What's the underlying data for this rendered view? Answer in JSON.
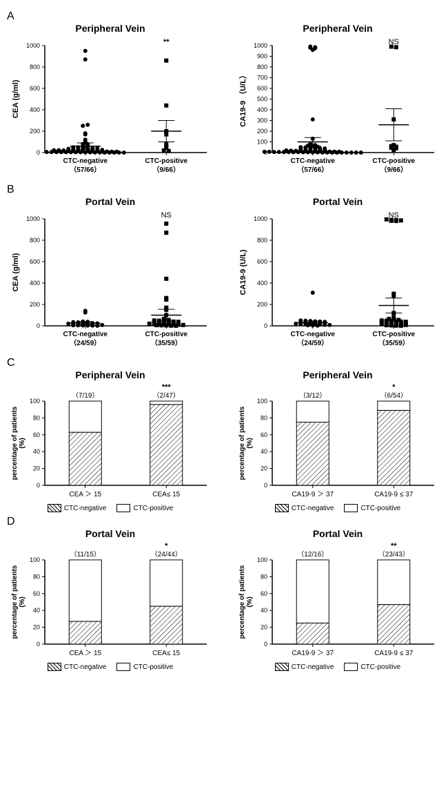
{
  "styling": {
    "colors": {
      "background": "#ffffff",
      "axis": "#000000",
      "marker": "#000000",
      "hatch_fg": "#000000",
      "hatch_bg": "#ffffff"
    },
    "fonts": {
      "panel_label_pt": 16,
      "title_pt": 14,
      "axis_label_pt": 11,
      "tick_pt": 10
    }
  },
  "scatter_common": {
    "ylim": [
      0,
      1000
    ],
    "ytick_step": 200,
    "marker_size": 5
  },
  "panel_A": {
    "label": "A",
    "left": {
      "title": "Peripheral Vein",
      "ylabel": "CEA (g/ml)",
      "ytick_step": 200,
      "ylim": [
        0,
        1000
      ],
      "groups": [
        {
          "label_top": "CTC-negative",
          "label_bottom": "（57/66）",
          "marker": "circle",
          "sig": "",
          "mean": 60,
          "err": 30,
          "points": [
            950,
            870,
            250,
            260,
            180,
            170,
            120,
            100,
            80,
            80,
            60,
            60,
            50,
            50,
            45,
            45,
            40,
            40,
            35,
            35,
            30,
            30,
            28,
            28,
            25,
            25,
            22,
            22,
            20,
            20,
            18,
            18,
            15,
            15,
            12,
            12,
            10,
            10,
            8,
            8,
            6,
            6,
            5,
            5,
            4,
            4,
            3,
            3,
            2,
            2,
            1,
            1,
            0,
            0,
            0,
            0,
            0
          ]
        },
        {
          "label_top": "CTC-positive",
          "label_bottom": "（9/66）",
          "marker": "square",
          "sig": "**",
          "mean": 200,
          "err": 100,
          "points": [
            860,
            440,
            200,
            170,
            80,
            55,
            45,
            20,
            15
          ]
        }
      ]
    },
    "right": {
      "title": "Peripheral Vein",
      "ylabel": "CA19-9 （U/L）",
      "ytick_step": 100,
      "ylim": [
        0,
        1000
      ],
      "groups": [
        {
          "label_top": "CTC-negative",
          "label_bottom": "（57/66）",
          "marker": "circle",
          "sig": "",
          "mean": 100,
          "err": 40,
          "points": [
            990,
            985,
            980,
            975,
            960,
            310,
            130,
            80,
            70,
            65,
            60,
            55,
            50,
            48,
            45,
            42,
            40,
            38,
            35,
            33,
            30,
            28,
            25,
            23,
            20,
            18,
            16,
            15,
            14,
            13,
            12,
            11,
            10,
            9,
            8,
            8,
            7,
            7,
            6,
            6,
            5,
            5,
            4,
            4,
            3,
            3,
            2,
            2,
            1,
            1,
            0,
            0,
            0,
            0,
            0,
            0,
            0
          ]
        },
        {
          "label_top": "CTC-positive",
          "label_bottom": "（9/66）",
          "marker": "square",
          "sig": "NS",
          "mean": 260,
          "err": 150,
          "points": [
            990,
            985,
            310,
            70,
            60,
            55,
            45,
            40,
            25
          ]
        }
      ]
    }
  },
  "panel_B": {
    "label": "B",
    "left": {
      "title": "Portal Vein",
      "ylabel": "CEA (g/ml)",
      "ytick_step": 200,
      "ylim": [
        0,
        1000
      ],
      "groups": [
        {
          "label_top": "CTC-negative",
          "label_bottom": "（24/59）",
          "marker": "circle",
          "sig": "",
          "mean": 25,
          "err": 15,
          "points": [
            140,
            125,
            40,
            38,
            35,
            33,
            30,
            28,
            25,
            23,
            20,
            18,
            16,
            15,
            14,
            12,
            10,
            8,
            6,
            5,
            4,
            3,
            2,
            1
          ]
        },
        {
          "label_top": "CTC-positive",
          "label_bottom": "（35/59）",
          "marker": "square",
          "sig": "NS",
          "mean": 100,
          "err": 55,
          "points": [
            955,
            870,
            440,
            260,
            245,
            170,
            150,
            100,
            65,
            55,
            50,
            48,
            45,
            42,
            40,
            38,
            35,
            33,
            30,
            28,
            25,
            23,
            20,
            18,
            16,
            15,
            14,
            12,
            10,
            8,
            6,
            5,
            4,
            2,
            1
          ]
        }
      ]
    },
    "right": {
      "title": "Portal Vein",
      "ylabel": "CA19-9 (U/L)",
      "ytick_step": 200,
      "ylim": [
        0,
        1000
      ],
      "groups": [
        {
          "label_top": "CTC-negative",
          "label_bottom": "（24/59）",
          "marker": "circle",
          "sig": "",
          "mean": 30,
          "err": 15,
          "points": [
            310,
            50,
            48,
            45,
            42,
            40,
            38,
            35,
            33,
            30,
            28,
            25,
            23,
            20,
            18,
            16,
            15,
            14,
            12,
            10,
            8,
            6,
            4,
            2
          ]
        },
        {
          "label_top": "CTC-positive",
          "label_bottom": "（35/59）",
          "marker": "square",
          "sig": "NS",
          "mean": 190,
          "err": 70,
          "points": [
            995,
            990,
            988,
            985,
            982,
            980,
            300,
            280,
            120,
            80,
            65,
            60,
            55,
            50,
            48,
            45,
            42,
            40,
            38,
            35,
            33,
            30,
            28,
            25,
            23,
            20,
            18,
            15,
            12,
            10,
            8,
            6,
            4,
            2,
            1
          ]
        }
      ]
    }
  },
  "bar_common": {
    "ylim": [
      0,
      100
    ],
    "ytick_step": 20,
    "bar_width": 0.4
  },
  "panel_C": {
    "label": "C",
    "left": {
      "title": "Peripheral Vein",
      "ylabel": "percentage of patients\n(%)",
      "bars": [
        {
          "xlabel": "CEA ＞ 15",
          "top_label": "（7/19）",
          "sig": "",
          "neg_pct": 63,
          "pos_pct": 37
        },
        {
          "xlabel": "CEA≤ 15",
          "top_label": "（2/47）",
          "sig": "***",
          "neg_pct": 96,
          "pos_pct": 4
        }
      ]
    },
    "right": {
      "title": "Peripheral Vein",
      "ylabel": "percentage of patients\n(%)",
      "bars": [
        {
          "xlabel": "CA19-9 ＞ 37",
          "top_label": "（3/12）",
          "sig": "",
          "neg_pct": 75,
          "pos_pct": 25
        },
        {
          "xlabel": "CA19-9 ≤ 37",
          "top_label": "（6/54）",
          "sig": "*",
          "neg_pct": 89,
          "pos_pct": 11
        }
      ]
    },
    "legend": {
      "neg": "CTC-negative",
      "pos": "CTC-positive"
    }
  },
  "panel_D": {
    "label": "D",
    "left": {
      "title": "Portal Vein",
      "ylabel": "percentage of patients\n(%)",
      "bars": [
        {
          "xlabel": "CEA ＞ 15",
          "top_label": "（11/15）",
          "sig": "",
          "neg_pct": 27,
          "pos_pct": 73
        },
        {
          "xlabel": "CEA≤ 15",
          "top_label": "（24/44）",
          "sig": "*",
          "neg_pct": 45,
          "pos_pct": 55
        }
      ]
    },
    "right": {
      "title": "Portal Vein",
      "ylabel": "percentage of patients\n(%)",
      "bars": [
        {
          "xlabel": "CA19-9 ＞ 37",
          "top_label": "（12/16）",
          "sig": "",
          "neg_pct": 25,
          "pos_pct": 75
        },
        {
          "xlabel": "CA19-9 ≤ 37",
          "top_label": "（23/43）",
          "sig": "**",
          "neg_pct": 47,
          "pos_pct": 53
        }
      ]
    },
    "legend": {
      "neg": "CTC-negative",
      "pos": "CTC-positive"
    }
  }
}
